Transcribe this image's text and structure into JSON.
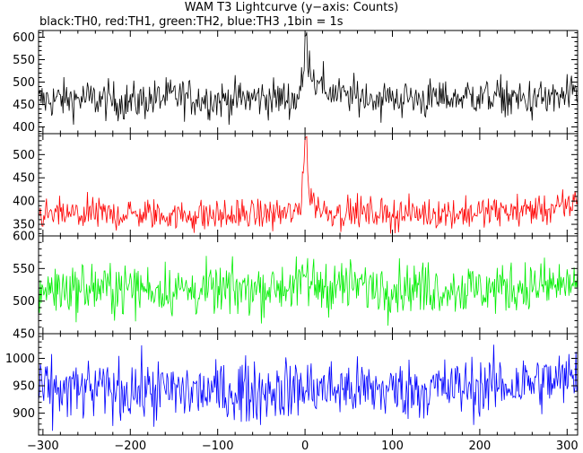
{
  "chart_data": {
    "type": "line",
    "title": "WAM T3 Lightcurve (y−axis: Counts)",
    "subtitle": "black:TH0, red:TH1, green:TH2, blue:TH3 ,1bin = 1s",
    "xlim": [
      -305,
      312
    ],
    "x_ticks": [
      -300,
      -200,
      -100,
      0,
      100,
      200,
      300
    ],
    "x_tick_labels": [
      "−300",
      "−200",
      "−100",
      "0",
      "100",
      "200",
      "300"
    ],
    "series": [
      {
        "name": "TH0",
        "color": "#000000",
        "ylim": [
          385,
          615
        ],
        "y_ticks": [
          400,
          450,
          500,
          550,
          600
        ],
        "y_tick_labels": [
          "400",
          "450",
          "500",
          "550",
          "600"
        ],
        "mean": 462,
        "noise": 22,
        "burst_peak": 612,
        "burst_decay_s": 14,
        "x": [
          -300,
          -250,
          -200,
          -150,
          -100,
          -50,
          -10,
          -2,
          0,
          2,
          5,
          10,
          20,
          40,
          80,
          150,
          200,
          250,
          300,
          310
        ],
        "values": [
          460,
          463,
          455,
          468,
          460,
          465,
          462,
          500,
          612,
          580,
          545,
          510,
          485,
          470,
          465,
          462,
          470,
          460,
          465,
          470
        ]
      },
      {
        "name": "TH1",
        "color": "#ff0000",
        "ylim": [
          325,
          545
        ],
        "y_ticks": [
          350,
          400,
          450,
          500
        ],
        "y_tick_labels": [
          "350",
          "400",
          "450",
          "500"
        ],
        "mean": 372,
        "noise": 17,
        "burst_peak": 540,
        "burst_decay_s": 5,
        "x": [
          -300,
          -200,
          -100,
          -5,
          0,
          5,
          20,
          100,
          200,
          300,
          310
        ],
        "values": [
          370,
          372,
          368,
          375,
          540,
          410,
          378,
          372,
          375,
          385,
          405
        ]
      },
      {
        "name": "TH2",
        "color": "#00ee00",
        "ylim": [
          450,
          600
        ],
        "y_ticks": [
          450,
          500,
          550,
          600
        ],
        "y_tick_labels": [
          "450",
          "500",
          "550",
          "600"
        ],
        "mean": 520,
        "noise": 20,
        "burst_peak": 545,
        "burst_decay_s": 4,
        "x": [
          -300,
          -200,
          -100,
          0,
          100,
          200,
          300,
          310
        ],
        "values": [
          518,
          520,
          515,
          525,
          522,
          518,
          525,
          530
        ]
      },
      {
        "name": "TH3",
        "color": "#0000ff",
        "ylim": [
          860,
          1045
        ],
        "y_ticks": [
          900,
          950,
          1000
        ],
        "y_tick_labels": [
          "900",
          "950",
          "1000"
        ],
        "mean": 945,
        "noise": 28,
        "burst_peak": 948,
        "burst_decay_s": 3,
        "x": [
          -300,
          -200,
          -100,
          0,
          100,
          200,
          300,
          310
        ],
        "values": [
          940,
          942,
          938,
          945,
          942,
          948,
          960,
          975
        ]
      }
    ]
  }
}
